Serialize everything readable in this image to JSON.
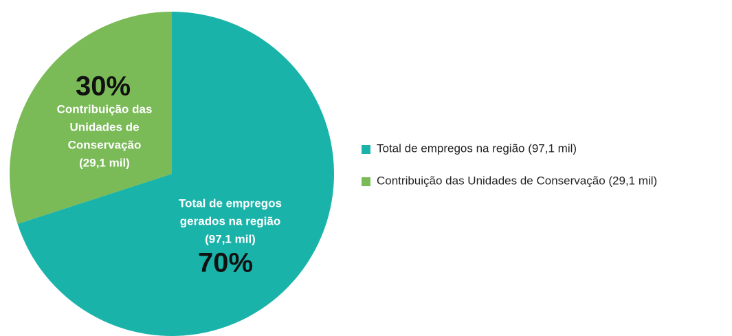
{
  "chart_data": {
    "type": "pie",
    "categories": [
      "Total de empregos na região (97,1 mil)",
      "Contribuição das Unidades de Conservação (29,1 mil)"
    ],
    "values": [
      70,
      30
    ],
    "value_labels": [
      "70%",
      "30%"
    ],
    "colors": [
      "#1ab3aa",
      "#7aba57"
    ],
    "slice_labels": [
      [
        "Total de empregos",
        "gerados na região",
        "(97,1 mil)"
      ],
      [
        "Contribuição das",
        "Unidades de",
        "Conservação",
        "(29,1 mil)"
      ]
    ],
    "legend": "right"
  }
}
